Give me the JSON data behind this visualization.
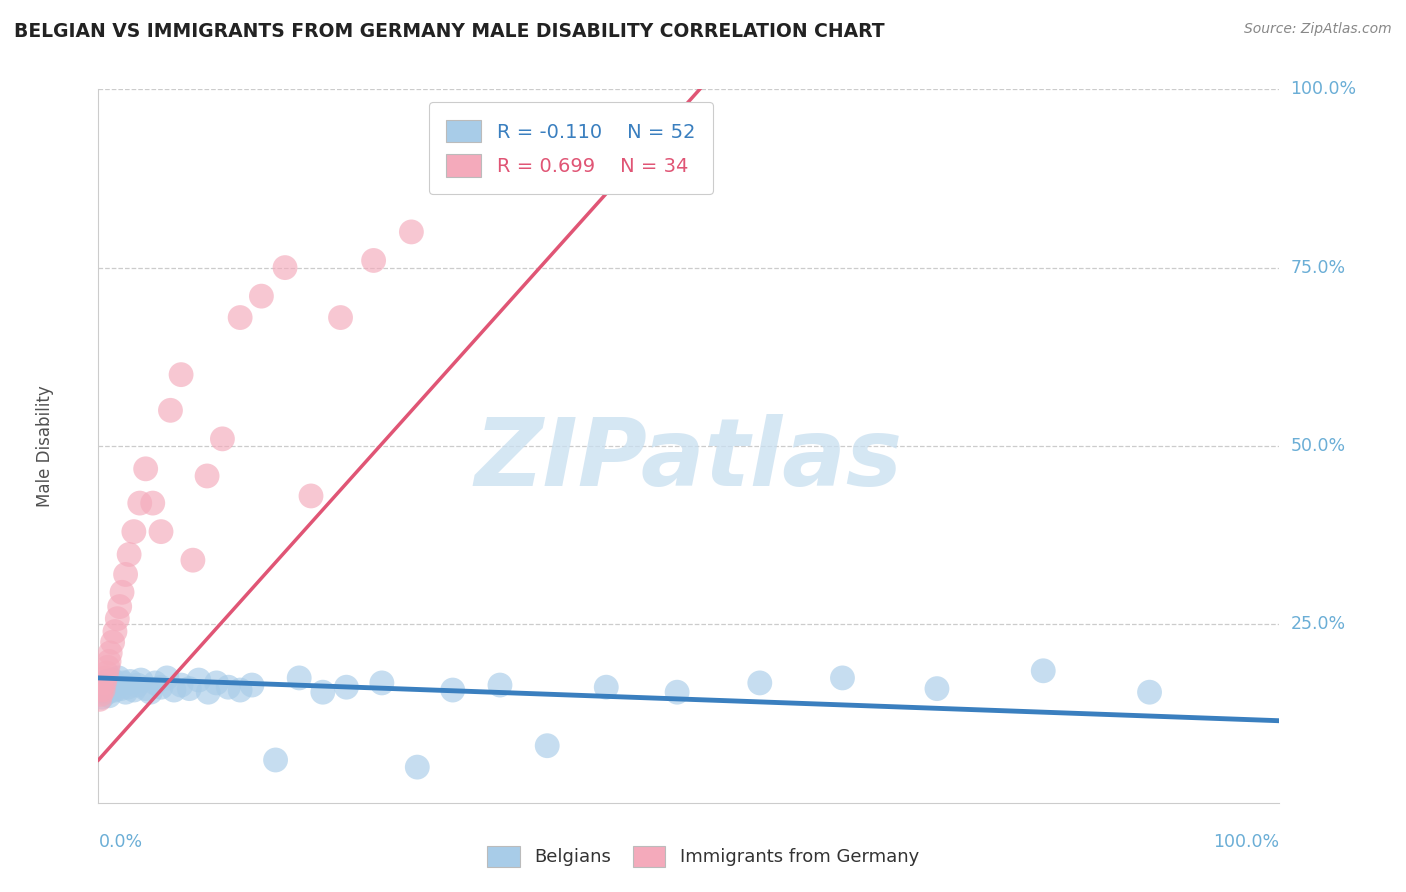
{
  "title": "BELGIAN VS IMMIGRANTS FROM GERMANY MALE DISABILITY CORRELATION CHART",
  "source": "Source: ZipAtlas.com",
  "ylabel": "Male Disability",
  "belgians_R": -0.11,
  "belgians_N": 52,
  "germany_R": 0.699,
  "germany_N": 34,
  "belgian_color": "#A8CCE8",
  "germany_color": "#F4AABB",
  "belgian_line_color": "#3A7FBF",
  "germany_line_color": "#E05575",
  "background_color": "#FFFFFF",
  "grid_color": "#CCCCCC",
  "axis_label_color": "#6BAED6",
  "title_color": "#222222",
  "source_color": "#888888",
  "watermark_color": "#C8DFF0",
  "watermark_text": "ZIPatlas",
  "ytick_positions": [
    0.0,
    0.25,
    0.5,
    0.75,
    1.0
  ],
  "ytick_labels": [
    "",
    "25.0%",
    "50.0%",
    "75.0%",
    "100.0%"
  ],
  "xlim": [
    0.0,
    1.0
  ],
  "ylim": [
    0.0,
    1.0
  ],
  "bel_line_x": [
    0.0,
    1.0
  ],
  "bel_line_y": [
    0.175,
    0.115
  ],
  "ger_line_x": [
    0.0,
    0.52
  ],
  "ger_line_y": [
    0.06,
    1.02
  ],
  "belgians_x": [
    0.001,
    0.002,
    0.003,
    0.004,
    0.005,
    0.006,
    0.007,
    0.008,
    0.009,
    0.01,
    0.012,
    0.014,
    0.015,
    0.017,
    0.019,
    0.021,
    0.023,
    0.025,
    0.027,
    0.03,
    0.033,
    0.036,
    0.04,
    0.044,
    0.048,
    0.053,
    0.058,
    0.064,
    0.07,
    0.077,
    0.085,
    0.093,
    0.1,
    0.11,
    0.12,
    0.13,
    0.15,
    0.17,
    0.19,
    0.21,
    0.24,
    0.27,
    0.3,
    0.34,
    0.38,
    0.43,
    0.49,
    0.56,
    0.63,
    0.71,
    0.8,
    0.89
  ],
  "belgians_y": [
    0.155,
    0.16,
    0.148,
    0.165,
    0.158,
    0.162,
    0.17,
    0.155,
    0.15,
    0.168,
    0.172,
    0.158,
    0.165,
    0.175,
    0.16,
    0.168,
    0.155,
    0.162,
    0.17,
    0.158,
    0.165,
    0.172,
    0.16,
    0.155,
    0.168,
    0.162,
    0.175,
    0.158,
    0.165,
    0.16,
    0.172,
    0.155,
    0.168,
    0.162,
    0.158,
    0.165,
    0.06,
    0.175,
    0.155,
    0.162,
    0.168,
    0.05,
    0.158,
    0.165,
    0.08,
    0.162,
    0.155,
    0.168,
    0.175,
    0.16,
    0.185,
    0.155
  ],
  "germany_x": [
    0.001,
    0.002,
    0.003,
    0.004,
    0.005,
    0.006,
    0.007,
    0.008,
    0.009,
    0.01,
    0.012,
    0.014,
    0.016,
    0.018,
    0.02,
    0.023,
    0.026,
    0.03,
    0.035,
    0.04,
    0.046,
    0.053,
    0.061,
    0.07,
    0.08,
    0.092,
    0.105,
    0.12,
    0.138,
    0.158,
    0.18,
    0.205,
    0.233,
    0.265
  ],
  "germany_y": [
    0.145,
    0.152,
    0.16,
    0.158,
    0.168,
    0.175,
    0.182,
    0.19,
    0.198,
    0.21,
    0.225,
    0.24,
    0.258,
    0.275,
    0.295,
    0.32,
    0.348,
    0.38,
    0.42,
    0.468,
    0.42,
    0.38,
    0.55,
    0.6,
    0.34,
    0.458,
    0.51,
    0.68,
    0.71,
    0.75,
    0.43,
    0.68,
    0.76,
    0.8
  ]
}
